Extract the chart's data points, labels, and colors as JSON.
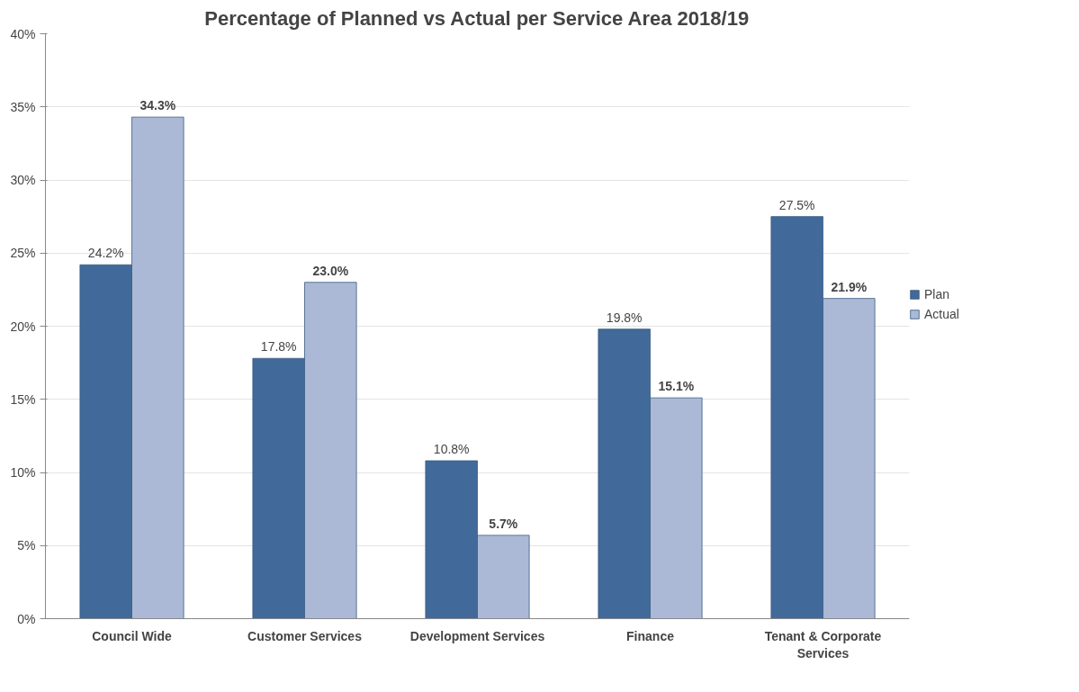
{
  "chart_data": {
    "type": "bar",
    "title": "Percentage of Planned vs Actual per Service Area 2018/19",
    "categories": [
      "Council Wide",
      "Customer Services",
      "Development Services",
      "Finance",
      "Tenant & Corporate Services"
    ],
    "series": [
      {
        "name": "Plan",
        "color": "#416a9b",
        "values": [
          24.2,
          17.8,
          10.8,
          19.8,
          27.5
        ],
        "value_labels": [
          "24.2%",
          "17.8%",
          "10.8%",
          "19.8%",
          "27.5%"
        ]
      },
      {
        "name": "Actual",
        "color": "#abb9d6",
        "values": [
          34.3,
          23.0,
          5.7,
          15.1,
          21.9
        ],
        "value_labels": [
          "34.3%",
          "23.0%",
          "5.7%",
          "15.1%",
          "21.9%"
        ]
      }
    ],
    "ylim": [
      0,
      40
    ],
    "yticks": [
      {
        "value": 0,
        "label": "0%"
      },
      {
        "value": 5,
        "label": "5%"
      },
      {
        "value": 10,
        "label": "10%"
      },
      {
        "value": 15,
        "label": "15%"
      },
      {
        "value": 20,
        "label": "20%"
      },
      {
        "value": 25,
        "label": "25%"
      },
      {
        "value": 30,
        "label": "30%"
      },
      {
        "value": 35,
        "label": "35%"
      },
      {
        "value": 40,
        "label": "40%"
      }
    ],
    "grid": "y",
    "legend": "right"
  }
}
